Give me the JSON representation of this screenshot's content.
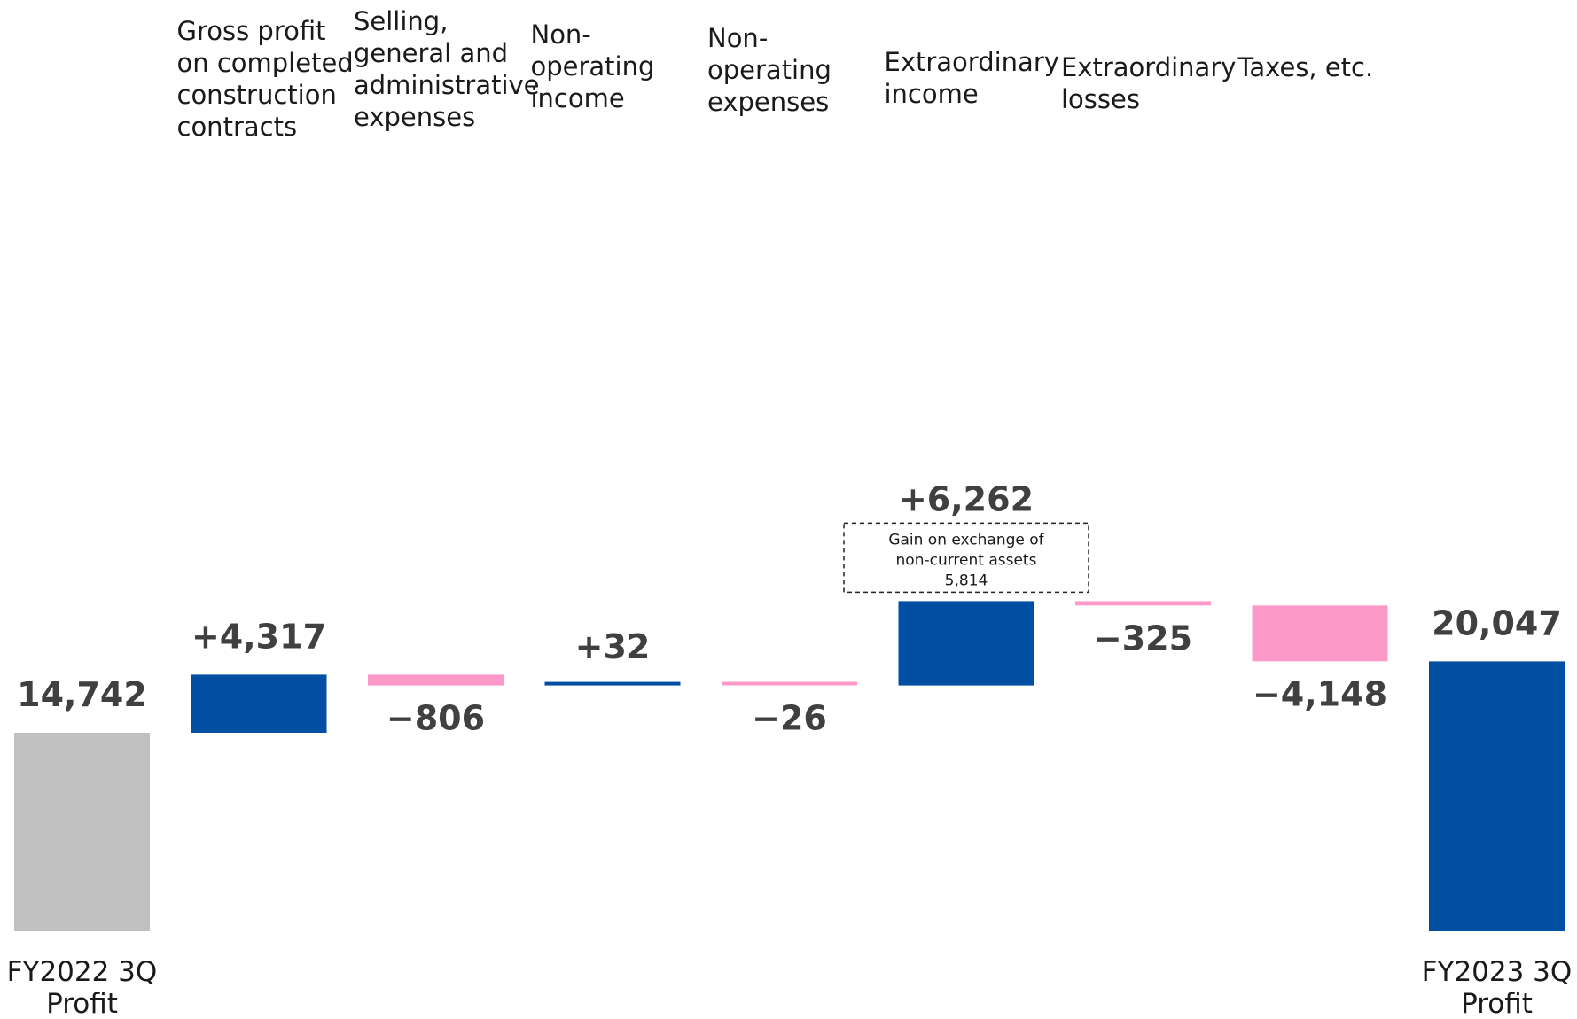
{
  "chart_data": {
    "type": "waterfall",
    "title": "",
    "categories": [
      "FY2022 3Q Profit",
      "Gross profit on completed construction contracts",
      "Selling, general and administrative expenses",
      "Non-operating income",
      "Non-operating expenses",
      "Extraordinary income",
      "Extraordinary losses",
      "Taxes, etc.",
      "FY2023 3Q Profit"
    ],
    "values": [
      14742,
      4317,
      -806,
      32,
      -26,
      6262,
      -325,
      -4148,
      20047
    ],
    "kinds": [
      "total",
      "delta",
      "delta",
      "delta",
      "delta",
      "delta",
      "delta",
      "delta",
      "total"
    ],
    "value_labels": [
      "14,742",
      "+4,317",
      "−806",
      "+32",
      "−26",
      "+6,262",
      "−325",
      "−4,148",
      "20,047"
    ],
    "annotation": {
      "category": "Extraordinary income",
      "text": [
        "Gain on exchange of",
        "non-current assets",
        "5,814"
      ],
      "value": 5814
    },
    "y_axis_visible": false,
    "grid": false,
    "legend": "none"
  },
  "colors": {
    "start_total": "#c0c0c0",
    "end_total": "#004fa3",
    "increase": "#004fa3",
    "decrease": "#fd99c9",
    "value_label": "#404040",
    "text": "#1a1a1a",
    "annotation_border": "#222222"
  }
}
